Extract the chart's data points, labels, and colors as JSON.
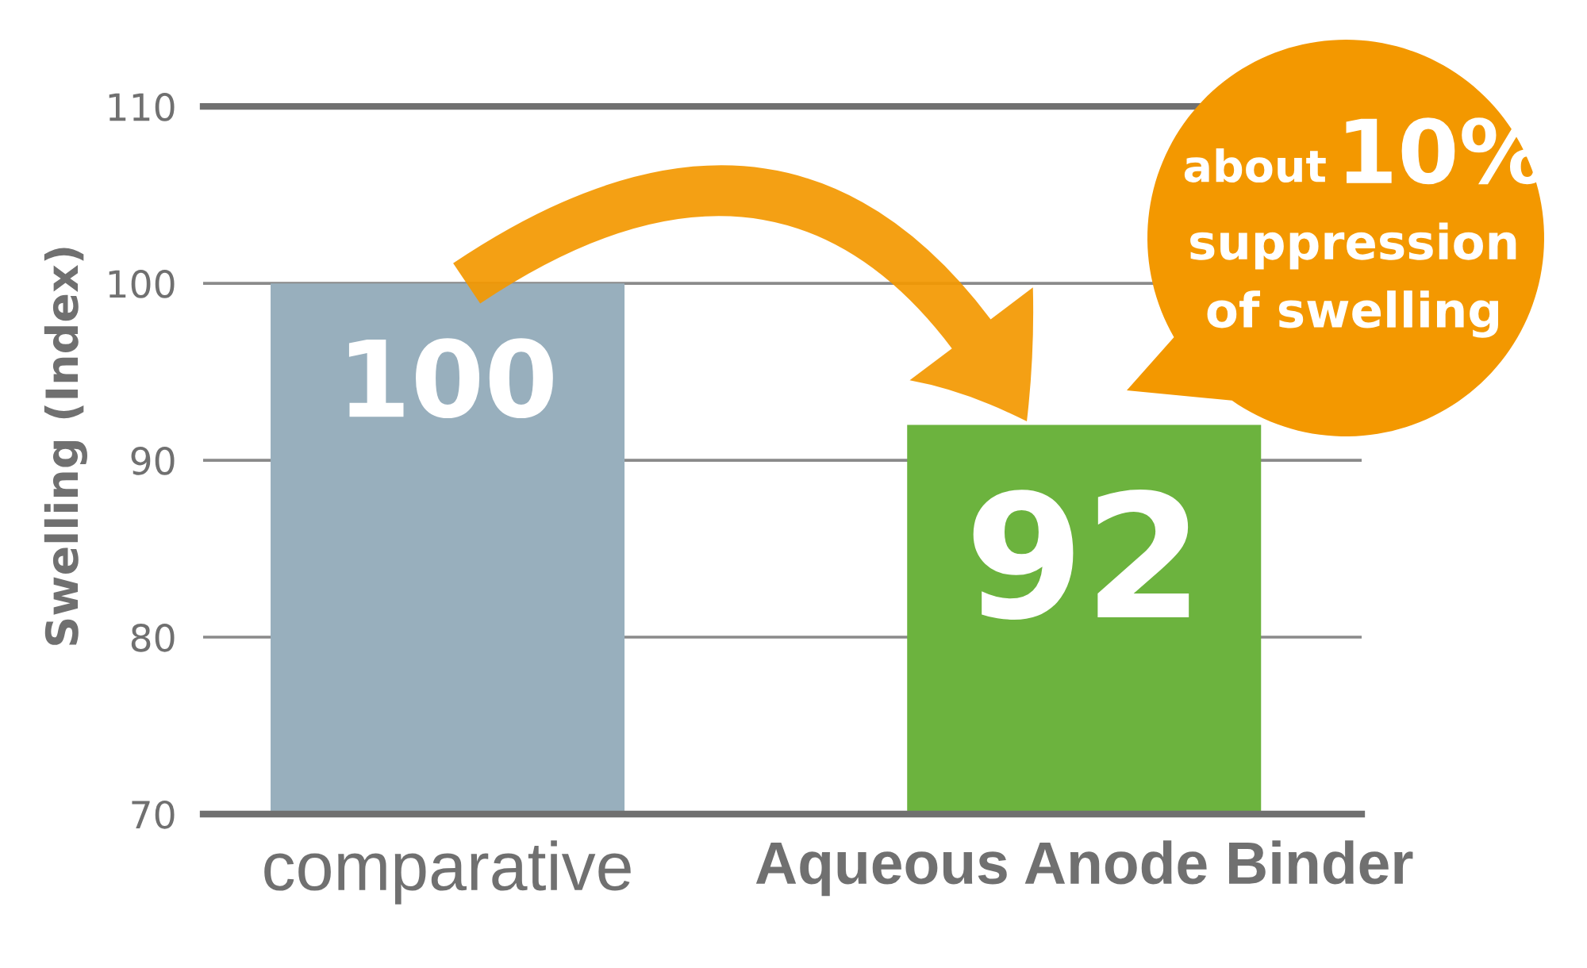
{
  "chart_data": {
    "type": "bar",
    "ylabel": "Swelling (Index)",
    "categories": [
      "comparative",
      "Aqueous Anode Binder"
    ],
    "values": [
      100,
      92
    ],
    "colors": [
      "#98afbd",
      "#6cb33e"
    ],
    "ylim": [
      70,
      110
    ],
    "yticks": [
      70,
      80,
      90,
      100,
      110
    ],
    "grid": "y",
    "data_labels": true,
    "annotations": [
      "about 10% suppression of swelling"
    ]
  }
}
